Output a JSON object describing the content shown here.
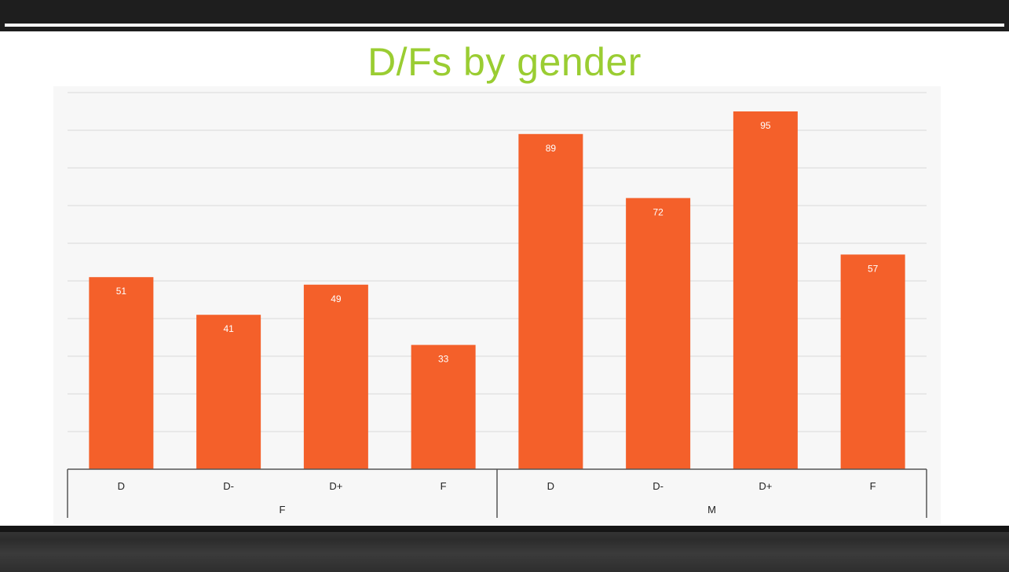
{
  "title": "D/Fs by gender",
  "colors": {
    "bar": "#f4602a",
    "title": "#9acd32",
    "grid": "#d9d9d9",
    "axis": "#555555",
    "label": "#ffffff",
    "cat_label": "#222222"
  },
  "chart_data": {
    "type": "bar",
    "title": "D/Fs by gender",
    "groups": [
      {
        "name": "F",
        "categories": [
          "D",
          "D-",
          "D+",
          "F"
        ],
        "values": [
          51,
          41,
          49,
          33
        ]
      },
      {
        "name": "M",
        "categories": [
          "D",
          "D-",
          "D+",
          "F"
        ],
        "values": [
          89,
          72,
          95,
          57
        ]
      }
    ],
    "data_labels": [
      "51",
      "41",
      "49",
      "33",
      "89",
      "72",
      "95",
      "57"
    ],
    "ylim": [
      0,
      100
    ],
    "grid": true,
    "legend": "none"
  }
}
